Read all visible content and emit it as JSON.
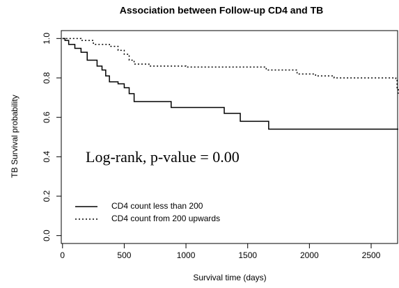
{
  "chart_data": {
    "type": "step",
    "title": "Association between Follow-up CD4 and TB",
    "xlabel": "Survival time (days)",
    "ylabel": "TB Survival probability",
    "annotation": "Log-rank, p-value = 0.00",
    "xlim": [
      -10,
      2720
    ],
    "xticks": [
      0,
      500,
      1000,
      1500,
      2000,
      2500
    ],
    "ylim": [
      -0.04,
      1.04
    ],
    "yticks": [
      {
        "value": 0,
        "label": "0.0"
      },
      0.2,
      0.4,
      0.6,
      0.8,
      {
        "value": 1,
        "label": "1.0"
      }
    ],
    "legend": "bottom-left",
    "series": [
      {
        "name": "CD4 count less than 200",
        "color": "#000000",
        "dash": "solid",
        "x": [
          0,
          20,
          50,
          100,
          150,
          200,
          280,
          320,
          350,
          380,
          450,
          500,
          540,
          580,
          880,
          1310,
          1440,
          1670,
          2720
        ],
        "values": [
          1.0,
          0.99,
          0.97,
          0.95,
          0.93,
          0.89,
          0.86,
          0.84,
          0.81,
          0.78,
          0.77,
          0.75,
          0.72,
          0.68,
          0.65,
          0.62,
          0.58,
          0.54,
          0.54
        ]
      },
      {
        "name": "CD4 count from 200 upwards",
        "color": "#000000",
        "dash": "dotted",
        "x": [
          0,
          150,
          250,
          380,
          450,
          500,
          540,
          580,
          700,
          1000,
          1650,
          1900,
          2050,
          2200,
          2700,
          2710,
          2720
        ],
        "values": [
          1.0,
          0.99,
          0.97,
          0.96,
          0.94,
          0.92,
          0.89,
          0.87,
          0.86,
          0.855,
          0.84,
          0.82,
          0.81,
          0.8,
          0.79,
          0.75,
          0.72
        ]
      }
    ]
  }
}
